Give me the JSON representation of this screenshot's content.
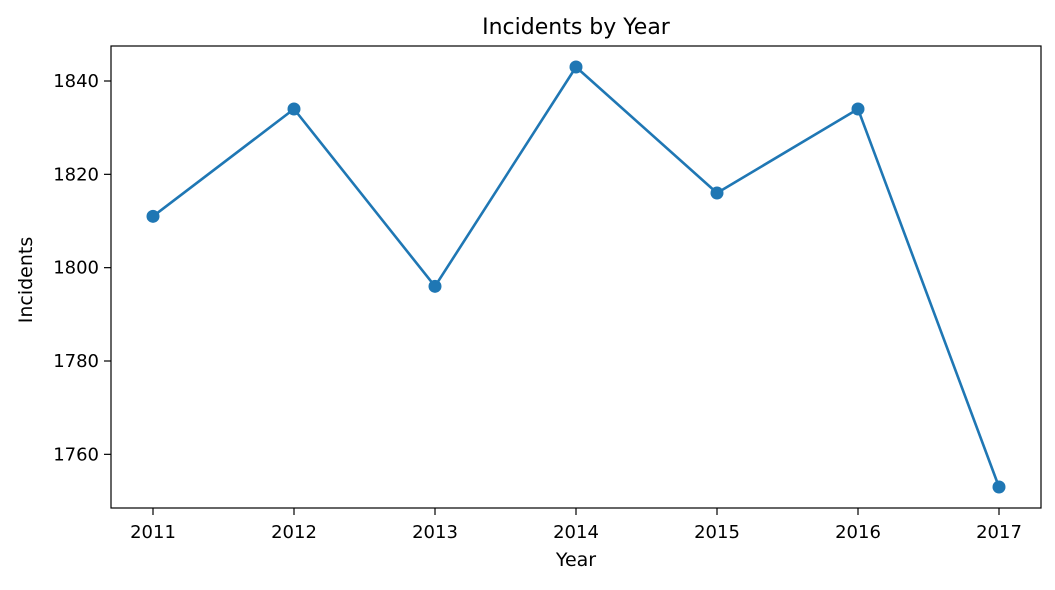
{
  "chart_data": {
    "type": "line",
    "title": "Incidents by Year",
    "xlabel": "Year",
    "ylabel": "Incidents",
    "x": [
      "2011",
      "2012",
      "2013",
      "2014",
      "2015",
      "2016",
      "2017"
    ],
    "series": [
      {
        "values": [
          1811,
          1834,
          1796,
          1843,
          1816,
          1834,
          1753
        ],
        "color": "#1f77b4",
        "marker": "circle"
      }
    ],
    "ylim": [
      1748.5,
      1847.5
    ],
    "yticks": [
      "1760",
      "1780",
      "1800",
      "1820",
      "1840"
    ],
    "grid": false,
    "legend": false
  }
}
